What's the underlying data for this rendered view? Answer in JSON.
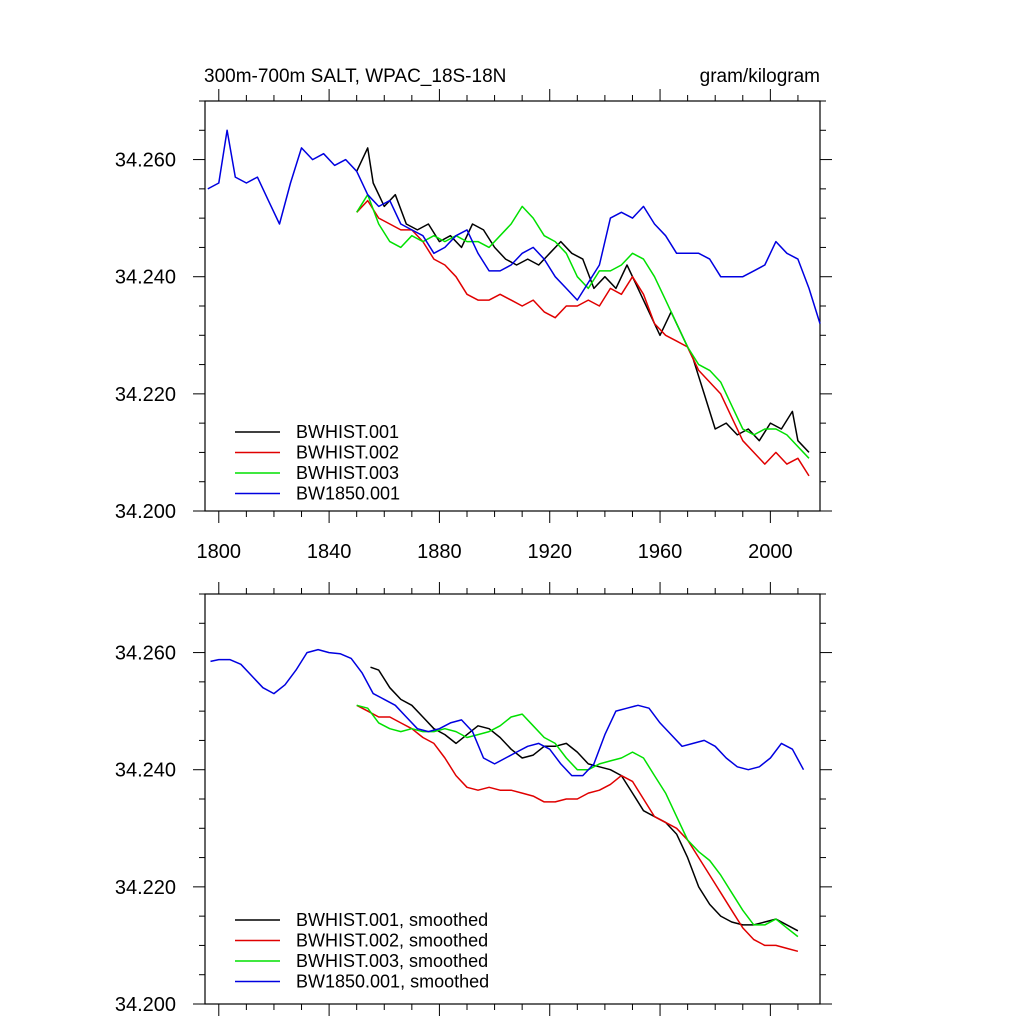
{
  "title_left": "300m-700m SALT, WPAC_18S-18N",
  "title_right": "gram/kilogram",
  "chart_data": [
    {
      "type": "line",
      "xlim": [
        1795,
        2018
      ],
      "ylim": [
        34.2,
        34.27
      ],
      "x_ticks": [
        1800,
        1840,
        1880,
        1920,
        1960,
        2000
      ],
      "y_ticks": [
        34.2,
        34.22,
        34.24,
        34.26
      ],
      "y_tick_labels": [
        "34.200",
        "34.220",
        "34.240",
        "34.260"
      ],
      "x_tick_labels": [
        "1800",
        "1840",
        "1880",
        "1920",
        "1960",
        "2000"
      ],
      "legend_position": "bottom-left",
      "series": [
        {
          "name": "BWHIST.001",
          "color": "#000000",
          "x": [
            1850,
            1854,
            1856,
            1860,
            1864,
            1868,
            1872,
            1876,
            1880,
            1884,
            1888,
            1892,
            1896,
            1900,
            1904,
            1908,
            1912,
            1916,
            1920,
            1924,
            1928,
            1932,
            1936,
            1940,
            1944,
            1948,
            1952,
            1956,
            1960,
            1964,
            1968,
            1972,
            1976,
            1980,
            1984,
            1988,
            1992,
            1996,
            2000,
            2004,
            2008,
            2010,
            2014
          ],
          "y": [
            34.258,
            34.262,
            34.256,
            34.252,
            34.254,
            34.249,
            34.248,
            34.249,
            34.246,
            34.247,
            34.245,
            34.249,
            34.248,
            34.245,
            34.243,
            34.242,
            34.243,
            34.242,
            34.244,
            34.246,
            34.244,
            34.243,
            34.238,
            34.24,
            34.238,
            34.242,
            34.238,
            34.234,
            34.23,
            34.234,
            34.23,
            34.226,
            34.22,
            34.214,
            34.215,
            34.213,
            34.214,
            34.212,
            34.215,
            34.214,
            34.217,
            34.212,
            34.21
          ]
        },
        {
          "name": "BWHIST.002",
          "color": "#e00000",
          "x": [
            1850,
            1854,
            1858,
            1862,
            1866,
            1870,
            1874,
            1878,
            1882,
            1886,
            1890,
            1894,
            1898,
            1902,
            1906,
            1910,
            1914,
            1918,
            1922,
            1926,
            1930,
            1934,
            1938,
            1942,
            1946,
            1950,
            1954,
            1958,
            1962,
            1966,
            1970,
            1974,
            1978,
            1982,
            1986,
            1990,
            1994,
            1998,
            2002,
            2006,
            2010,
            2014
          ],
          "y": [
            34.251,
            34.253,
            34.25,
            34.249,
            34.248,
            34.248,
            34.246,
            34.243,
            34.242,
            34.24,
            34.237,
            34.236,
            34.236,
            34.237,
            34.236,
            34.235,
            34.236,
            34.234,
            34.233,
            34.235,
            34.235,
            34.236,
            34.235,
            34.238,
            34.237,
            34.24,
            34.237,
            34.232,
            34.23,
            34.229,
            34.228,
            34.224,
            34.222,
            34.22,
            34.216,
            34.212,
            34.21,
            34.208,
            34.21,
            34.208,
            34.209,
            34.206
          ]
        },
        {
          "name": "BWHIST.003",
          "color": "#00e000",
          "x": [
            1850,
            1854,
            1858,
            1862,
            1866,
            1870,
            1874,
            1878,
            1882,
            1886,
            1890,
            1894,
            1898,
            1902,
            1906,
            1910,
            1914,
            1918,
            1922,
            1926,
            1930,
            1934,
            1938,
            1942,
            1946,
            1950,
            1954,
            1958,
            1962,
            1966,
            1970,
            1974,
            1978,
            1982,
            1986,
            1990,
            1994,
            1998,
            2002,
            2006,
            2010,
            2014
          ],
          "y": [
            34.251,
            34.254,
            34.249,
            34.246,
            34.245,
            34.247,
            34.246,
            34.247,
            34.246,
            34.247,
            34.246,
            34.246,
            34.245,
            34.247,
            34.249,
            34.252,
            34.25,
            34.247,
            34.246,
            34.244,
            34.24,
            34.238,
            34.241,
            34.241,
            34.242,
            34.244,
            34.243,
            34.24,
            34.236,
            34.232,
            34.228,
            34.225,
            34.224,
            34.222,
            34.218,
            34.214,
            34.213,
            34.214,
            34.214,
            34.213,
            34.211,
            34.209
          ]
        },
        {
          "name": "BW1850.001",
          "color": "#0000e0",
          "x": [
            1796,
            1800,
            1803,
            1806,
            1810,
            1814,
            1818,
            1822,
            1826,
            1830,
            1834,
            1838,
            1842,
            1846,
            1850,
            1854,
            1858,
            1862,
            1866,
            1870,
            1874,
            1878,
            1882,
            1886,
            1890,
            1894,
            1898,
            1902,
            1906,
            1910,
            1914,
            1918,
            1922,
            1926,
            1930,
            1934,
            1938,
            1942,
            1946,
            1950,
            1954,
            1958,
            1962,
            1966,
            1970,
            1974,
            1978,
            1982,
            1986,
            1990,
            1994,
            1998,
            2002,
            2006,
            2010,
            2014,
            2018
          ],
          "y": [
            34.255,
            34.256,
            34.265,
            34.257,
            34.256,
            34.257,
            34.253,
            34.249,
            34.256,
            34.262,
            34.26,
            34.261,
            34.259,
            34.26,
            34.258,
            34.254,
            34.252,
            34.253,
            34.249,
            34.248,
            34.247,
            34.244,
            34.245,
            34.247,
            34.248,
            34.244,
            34.241,
            34.241,
            34.242,
            34.244,
            34.245,
            34.243,
            34.24,
            34.238,
            34.236,
            34.239,
            34.242,
            34.25,
            34.251,
            34.25,
            34.252,
            34.249,
            34.247,
            34.244,
            34.244,
            34.244,
            34.243,
            34.24,
            34.24,
            34.24,
            34.241,
            34.242,
            34.246,
            34.244,
            34.243,
            34.238,
            34.232
          ]
        }
      ]
    },
    {
      "type": "line",
      "xlim": [
        1795,
        2018
      ],
      "ylim": [
        34.2,
        34.27
      ],
      "x_ticks": [
        1800,
        1840,
        1880,
        1920,
        1960,
        2000
      ],
      "y_ticks": [
        34.2,
        34.22,
        34.24,
        34.26
      ],
      "y_tick_labels": [
        "34.200",
        "34.220",
        "34.240",
        "34.260"
      ],
      "legend_position": "bottom-left",
      "series": [
        {
          "name": "BWHIST.001, smoothed",
          "color": "#000000",
          "x": [
            1855,
            1858,
            1862,
            1866,
            1870,
            1874,
            1878,
            1882,
            1886,
            1890,
            1894,
            1898,
            1902,
            1906,
            1910,
            1914,
            1918,
            1922,
            1926,
            1930,
            1934,
            1938,
            1942,
            1946,
            1950,
            1954,
            1958,
            1962,
            1966,
            1970,
            1974,
            1978,
            1982,
            1986,
            1990,
            1994,
            1998,
            2002,
            2006,
            2010
          ],
          "y": [
            34.2575,
            34.257,
            34.254,
            34.252,
            34.251,
            34.249,
            34.247,
            34.246,
            34.2445,
            34.246,
            34.2475,
            34.247,
            34.2455,
            34.2435,
            34.242,
            34.2425,
            34.244,
            34.244,
            34.2445,
            34.243,
            34.241,
            34.2405,
            34.24,
            34.239,
            34.236,
            34.233,
            34.232,
            34.231,
            34.229,
            34.225,
            34.22,
            34.217,
            34.215,
            34.214,
            34.2135,
            34.2135,
            34.214,
            34.2145,
            34.2135,
            34.2125
          ]
        },
        {
          "name": "BWHIST.002, smoothed",
          "color": "#e00000",
          "x": [
            1850,
            1854,
            1858,
            1862,
            1866,
            1870,
            1874,
            1878,
            1882,
            1886,
            1890,
            1894,
            1898,
            1902,
            1906,
            1910,
            1914,
            1918,
            1922,
            1926,
            1930,
            1934,
            1938,
            1942,
            1946,
            1950,
            1954,
            1958,
            1962,
            1966,
            1970,
            1974,
            1978,
            1982,
            1986,
            1990,
            1994,
            1998,
            2002,
            2006,
            2010
          ],
          "y": [
            34.251,
            34.25,
            34.249,
            34.249,
            34.248,
            34.247,
            34.2455,
            34.2445,
            34.242,
            34.239,
            34.237,
            34.2365,
            34.237,
            34.2365,
            34.2365,
            34.236,
            34.2355,
            34.2345,
            34.2345,
            34.235,
            34.235,
            34.236,
            34.2365,
            34.2375,
            34.239,
            34.238,
            34.235,
            34.232,
            34.231,
            34.23,
            34.228,
            34.225,
            34.222,
            34.219,
            34.216,
            34.213,
            34.211,
            34.21,
            34.21,
            34.2095,
            34.209
          ]
        },
        {
          "name": "BWHIST.003, smoothed",
          "color": "#00e000",
          "x": [
            1850,
            1854,
            1858,
            1862,
            1866,
            1870,
            1874,
            1878,
            1882,
            1886,
            1890,
            1894,
            1898,
            1902,
            1906,
            1910,
            1914,
            1918,
            1922,
            1926,
            1930,
            1934,
            1938,
            1942,
            1946,
            1950,
            1954,
            1958,
            1962,
            1966,
            1970,
            1974,
            1978,
            1982,
            1986,
            1990,
            1994,
            1998,
            2002,
            2006,
            2010
          ],
          "y": [
            34.251,
            34.2505,
            34.248,
            34.247,
            34.2465,
            34.247,
            34.2465,
            34.2465,
            34.247,
            34.2465,
            34.2455,
            34.246,
            34.2465,
            34.2475,
            34.249,
            34.2495,
            34.2475,
            34.2455,
            34.2445,
            34.242,
            34.24,
            34.24,
            34.241,
            34.2415,
            34.242,
            34.243,
            34.242,
            34.239,
            34.236,
            34.232,
            34.228,
            34.226,
            34.2245,
            34.222,
            34.219,
            34.216,
            34.2135,
            34.2135,
            34.2145,
            34.213,
            34.2115
          ]
        },
        {
          "name": "BW1850.001, smoothed",
          "color": "#0000e0",
          "x": [
            1797,
            1800,
            1804,
            1808,
            1812,
            1816,
            1820,
            1824,
            1828,
            1832,
            1836,
            1840,
            1844,
            1848,
            1852,
            1856,
            1860,
            1864,
            1868,
            1872,
            1876,
            1880,
            1884,
            1888,
            1892,
            1896,
            1900,
            1904,
            1908,
            1912,
            1916,
            1920,
            1924,
            1928,
            1932,
            1936,
            1940,
            1944,
            1948,
            1952,
            1956,
            1960,
            1964,
            1968,
            1972,
            1976,
            1980,
            1984,
            1988,
            1992,
            1996,
            2000,
            2004,
            2008,
            2012
          ],
          "y": [
            34.2585,
            34.2588,
            34.2588,
            34.258,
            34.256,
            34.254,
            34.253,
            34.2545,
            34.257,
            34.26,
            34.2605,
            34.26,
            34.2598,
            34.259,
            34.2565,
            34.253,
            34.252,
            34.251,
            34.249,
            34.247,
            34.2465,
            34.247,
            34.248,
            34.2485,
            34.2465,
            34.242,
            34.241,
            34.242,
            34.243,
            34.244,
            34.2445,
            34.2435,
            34.241,
            34.239,
            34.239,
            34.241,
            34.246,
            34.25,
            34.2505,
            34.251,
            34.2505,
            34.248,
            34.246,
            34.244,
            34.2445,
            34.245,
            34.244,
            34.242,
            34.2405,
            34.24,
            34.2405,
            34.242,
            34.2445,
            34.2435,
            34.24
          ]
        }
      ]
    }
  ]
}
